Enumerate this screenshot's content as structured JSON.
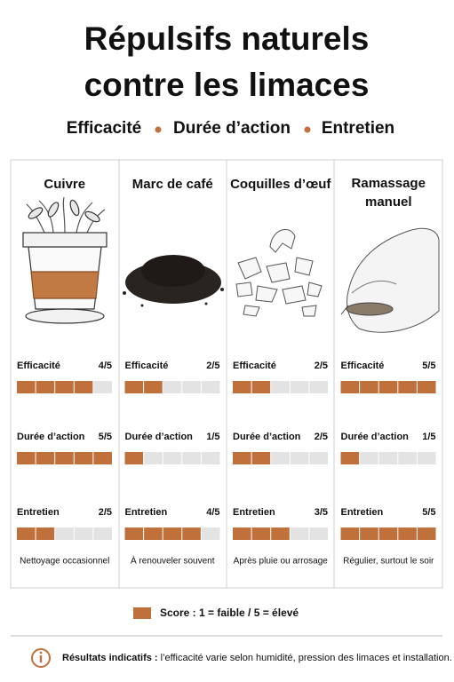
{
  "header": {
    "title_lines": [
      "Répulsifs naturels",
      "contre les limaces"
    ],
    "subtitle": [
      "Efficacité",
      "Durée d’action",
      "Entretien"
    ]
  },
  "max": 5,
  "columns": [
    {
      "name": [
        "Cuivre"
      ],
      "rows": [
        {
          "label": "Efficacité",
          "score": {
            "value": 4,
            "label": "4/5"
          }
        },
        {
          "label": "Durée d’action",
          "score": {
            "value": 5,
            "label": "5/5"
          }
        },
        {
          "label": "Entretien",
          "score": {
            "value": 2,
            "label": "2/5"
          }
        }
      ],
      "note": "Nettoyage occasionnel"
    },
    {
      "name": [
        "Marc de café"
      ],
      "rows": [
        {
          "label": "Efficacité",
          "score": {
            "value": 2,
            "label": "2/5"
          }
        },
        {
          "label": "Durée d’action",
          "score": {
            "value": 1,
            "label": "1/5"
          }
        },
        {
          "label": "Entretien",
          "score": {
            "value": 4,
            "label": "4/5"
          }
        }
      ],
      "note": "À renouveler souvent"
    },
    {
      "name": [
        "Coquilles d’œuf"
      ],
      "rows": [
        {
          "label": "Efficacité",
          "score": {
            "value": 2,
            "label": "2/5"
          }
        },
        {
          "label": "Durée d’action",
          "score": {
            "value": 2,
            "label": "2/5"
          }
        },
        {
          "label": "Entretien",
          "score": {
            "value": 3,
            "label": "3/5"
          }
        }
      ],
      "note": "Après pluie ou arrosage"
    },
    {
      "name": [
        "Ramassage",
        "manuel"
      ],
      "rows": [
        {
          "label": "Efficacité",
          "score": {
            "value": 5,
            "label": "5/5"
          }
        },
        {
          "label": "Durée d’action",
          "score": {
            "value": 1,
            "label": "1/5"
          }
        },
        {
          "label": "Entretien",
          "score": {
            "value": 5,
            "label": "5/5"
          }
        }
      ],
      "note": "Régulier, surtout le soir"
    }
  ],
  "legend": "Score : 1 = faible / 5 = élevé",
  "footer": {
    "bold": "Résultats indicatifs :",
    "text": "l’efficacité varie selon humidité, pression des limaces et installation."
  }
}
